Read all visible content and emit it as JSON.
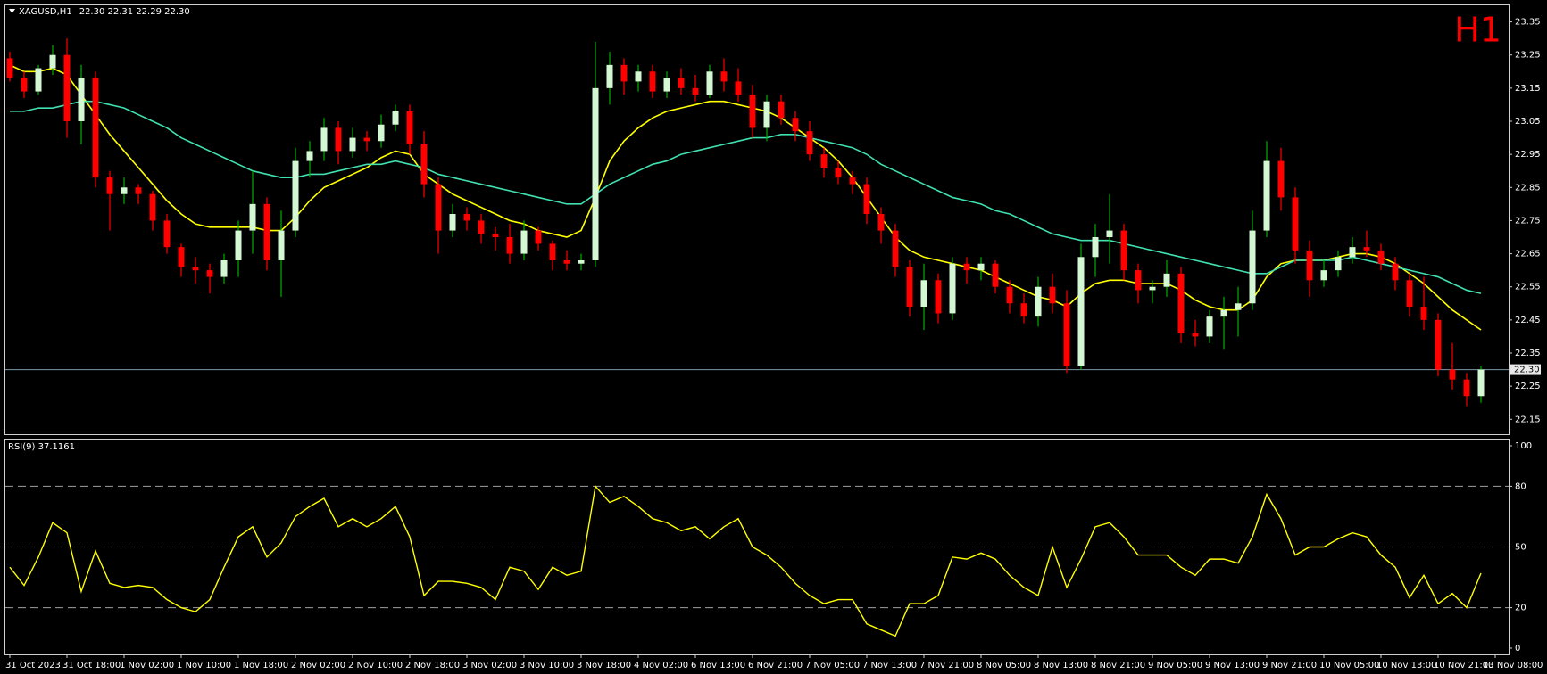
{
  "chart_data": [
    {
      "type": "candlestick",
      "title": "XAGUSD,H1",
      "quote": "22.30 22.31 22.29 22.30",
      "badge": "H1",
      "badge_color": "#ff0000",
      "up_color": "#d4f7d4",
      "up_wick": "#00b000",
      "down_color": "#ff0000",
      "candles": [
        [
          23.24,
          23.26,
          23.17,
          23.18
        ],
        [
          23.18,
          23.2,
          23.12,
          23.14
        ],
        [
          23.14,
          23.22,
          23.13,
          23.21
        ],
        [
          23.21,
          23.28,
          23.19,
          23.25
        ],
        [
          23.25,
          23.3,
          23.0,
          23.05
        ],
        [
          23.05,
          23.22,
          22.98,
          23.18
        ],
        [
          23.18,
          23.2,
          22.85,
          22.88
        ],
        [
          22.88,
          22.9,
          22.72,
          22.83
        ],
        [
          22.83,
          22.88,
          22.8,
          22.85
        ],
        [
          22.85,
          22.86,
          22.8,
          22.83
        ],
        [
          22.83,
          22.84,
          22.72,
          22.75
        ],
        [
          22.75,
          22.77,
          22.65,
          22.67
        ],
        [
          22.67,
          22.68,
          22.58,
          22.61
        ],
        [
          22.61,
          22.64,
          22.56,
          22.6
        ],
        [
          22.6,
          22.62,
          22.53,
          22.58
        ],
        [
          22.58,
          22.65,
          22.56,
          22.63
        ],
        [
          22.63,
          22.75,
          22.58,
          22.72
        ],
        [
          22.72,
          22.9,
          22.65,
          22.8
        ],
        [
          22.8,
          22.82,
          22.6,
          22.63
        ],
        [
          22.63,
          22.78,
          22.52,
          22.72
        ],
        [
          22.72,
          22.97,
          22.7,
          22.93
        ],
        [
          22.93,
          22.99,
          22.88,
          22.96
        ],
        [
          22.96,
          23.06,
          22.93,
          23.03
        ],
        [
          23.03,
          23.05,
          22.92,
          22.96
        ],
        [
          22.96,
          23.03,
          22.94,
          23.0
        ],
        [
          23.0,
          23.02,
          22.96,
          22.99
        ],
        [
          22.99,
          23.07,
          22.97,
          23.04
        ],
        [
          23.04,
          23.1,
          23.02,
          23.08
        ],
        [
          23.08,
          23.1,
          22.95,
          22.98
        ],
        [
          22.98,
          23.02,
          22.82,
          22.86
        ],
        [
          22.86,
          22.88,
          22.65,
          22.72
        ],
        [
          22.72,
          22.8,
          22.7,
          22.77
        ],
        [
          22.77,
          22.79,
          22.72,
          22.75
        ],
        [
          22.75,
          22.77,
          22.68,
          22.71
        ],
        [
          22.71,
          22.73,
          22.66,
          22.7
        ],
        [
          22.7,
          22.74,
          22.62,
          22.65
        ],
        [
          22.65,
          22.75,
          22.63,
          22.72
        ],
        [
          22.72,
          22.73,
          22.66,
          22.68
        ],
        [
          22.68,
          22.69,
          22.6,
          22.63
        ],
        [
          22.63,
          22.66,
          22.6,
          22.62
        ],
        [
          22.62,
          22.65,
          22.6,
          22.63
        ],
        [
          22.63,
          23.29,
          22.61,
          23.15
        ],
        [
          23.15,
          23.26,
          23.1,
          23.22
        ],
        [
          23.22,
          23.24,
          23.13,
          23.17
        ],
        [
          23.17,
          23.22,
          23.14,
          23.2
        ],
        [
          23.2,
          23.22,
          23.12,
          23.14
        ],
        [
          23.14,
          23.2,
          23.12,
          23.18
        ],
        [
          23.18,
          23.21,
          23.13,
          23.15
        ],
        [
          23.15,
          23.19,
          23.11,
          23.13
        ],
        [
          23.13,
          23.22,
          23.12,
          23.2
        ],
        [
          23.2,
          23.24,
          23.14,
          23.17
        ],
        [
          23.17,
          23.21,
          23.11,
          23.13
        ],
        [
          23.13,
          23.16,
          23.0,
          23.03
        ],
        [
          23.03,
          23.13,
          22.99,
          23.11
        ],
        [
          23.11,
          23.13,
          23.04,
          23.06
        ],
        [
          23.06,
          23.08,
          22.99,
          23.02
        ],
        [
          23.02,
          23.05,
          22.93,
          22.95
        ],
        [
          22.95,
          22.97,
          22.88,
          22.91
        ],
        [
          22.91,
          22.93,
          22.86,
          22.88
        ],
        [
          22.88,
          22.9,
          22.83,
          22.86
        ],
        [
          22.86,
          22.88,
          22.74,
          22.77
        ],
        [
          22.77,
          22.79,
          22.68,
          22.72
        ],
        [
          22.72,
          22.74,
          22.58,
          22.61
        ],
        [
          22.61,
          22.63,
          22.46,
          22.49
        ],
        [
          22.49,
          22.62,
          22.42,
          22.57
        ],
        [
          22.57,
          22.59,
          22.44,
          22.47
        ],
        [
          22.47,
          22.64,
          22.45,
          22.62
        ],
        [
          22.62,
          22.64,
          22.56,
          22.6
        ],
        [
          22.6,
          22.64,
          22.57,
          22.62
        ],
        [
          22.62,
          22.63,
          22.53,
          22.55
        ],
        [
          22.55,
          22.57,
          22.47,
          22.5
        ],
        [
          22.5,
          22.53,
          22.44,
          22.46
        ],
        [
          22.46,
          22.58,
          22.43,
          22.55
        ],
        [
          22.55,
          22.59,
          22.47,
          22.5
        ],
        [
          22.5,
          22.54,
          22.29,
          22.31
        ],
        [
          22.31,
          22.68,
          22.3,
          22.64
        ],
        [
          22.64,
          22.74,
          22.58,
          22.7
        ],
        [
          22.7,
          22.83,
          22.62,
          22.72
        ],
        [
          22.72,
          22.74,
          22.57,
          22.6
        ],
        [
          22.6,
          22.62,
          22.5,
          22.54
        ],
        [
          22.54,
          22.57,
          22.5,
          22.55
        ],
        [
          22.55,
          22.63,
          22.52,
          22.59
        ],
        [
          22.59,
          22.61,
          22.38,
          22.41
        ],
        [
          22.41,
          22.45,
          22.37,
          22.4
        ],
        [
          22.4,
          22.48,
          22.38,
          22.46
        ],
        [
          22.46,
          22.52,
          22.36,
          22.48
        ],
        [
          22.48,
          22.55,
          22.4,
          22.5
        ],
        [
          22.5,
          22.78,
          22.48,
          22.72
        ],
        [
          22.72,
          22.99,
          22.7,
          22.93
        ],
        [
          22.93,
          22.97,
          22.78,
          22.82
        ],
        [
          22.82,
          22.85,
          22.62,
          22.66
        ],
        [
          22.66,
          22.69,
          22.52,
          22.57
        ],
        [
          22.57,
          22.63,
          22.55,
          22.6
        ],
        [
          22.6,
          22.66,
          22.58,
          22.64
        ],
        [
          22.64,
          22.7,
          22.62,
          22.67
        ],
        [
          22.67,
          22.72,
          22.64,
          22.66
        ],
        [
          22.66,
          22.68,
          22.6,
          22.62
        ],
        [
          22.62,
          22.64,
          22.54,
          22.57
        ],
        [
          22.57,
          22.59,
          22.46,
          22.49
        ],
        [
          22.49,
          22.58,
          22.42,
          22.45
        ],
        [
          22.45,
          22.47,
          22.28,
          22.3
        ],
        [
          22.3,
          22.38,
          22.24,
          22.27
        ],
        [
          22.27,
          22.29,
          22.19,
          22.22
        ],
        [
          22.22,
          22.31,
          22.2,
          22.3
        ],
        null
      ],
      "lines": [
        {
          "color": "#ffff00",
          "values": [
            23.22,
            23.2,
            23.2,
            23.21,
            23.19,
            23.13,
            23.07,
            23.01,
            22.96,
            22.91,
            22.86,
            22.81,
            22.77,
            22.74,
            22.73,
            22.73,
            22.73,
            22.73,
            22.72,
            22.72,
            22.76,
            22.81,
            22.85,
            22.87,
            22.89,
            22.91,
            22.94,
            22.96,
            22.95,
            22.89,
            22.86,
            22.83,
            22.81,
            22.79,
            22.77,
            22.75,
            22.74,
            22.72,
            22.71,
            22.7,
            22.72,
            22.82,
            22.93,
            22.99,
            23.03,
            23.06,
            23.08,
            23.09,
            23.1,
            23.11,
            23.11,
            23.1,
            23.09,
            23.08,
            23.06,
            23.03,
            23.0,
            22.97,
            22.93,
            22.88,
            22.82,
            22.76,
            22.7,
            22.66,
            22.64,
            22.63,
            22.62,
            22.61,
            22.6,
            22.58,
            22.56,
            22.54,
            22.52,
            22.51,
            22.49,
            22.53,
            22.56,
            22.57,
            22.57,
            22.56,
            22.56,
            22.56,
            22.54,
            22.51,
            22.49,
            22.48,
            22.48,
            22.51,
            22.58,
            22.62,
            22.63,
            22.63,
            22.63,
            22.64,
            22.65,
            22.65,
            22.64,
            22.62,
            22.59,
            22.56,
            22.52,
            22.48,
            22.45,
            22.42,
            null
          ]
        },
        {
          "color": "#40e0b0",
          "values": [
            23.08,
            23.08,
            23.09,
            23.09,
            23.1,
            23.11,
            23.11,
            23.1,
            23.09,
            23.07,
            23.05,
            23.03,
            23.0,
            22.98,
            22.96,
            22.94,
            22.92,
            22.9,
            22.89,
            22.88,
            22.88,
            22.89,
            22.89,
            22.9,
            22.91,
            22.92,
            22.92,
            22.93,
            22.92,
            22.91,
            22.89,
            22.88,
            22.87,
            22.86,
            22.85,
            22.84,
            22.83,
            22.82,
            22.81,
            22.8,
            22.8,
            22.83,
            22.86,
            22.88,
            22.9,
            22.92,
            22.93,
            22.95,
            22.96,
            22.97,
            22.98,
            22.99,
            23.0,
            23.0,
            23.01,
            23.01,
            23.0,
            22.99,
            22.98,
            22.97,
            22.95,
            22.92,
            22.9,
            22.88,
            22.86,
            22.84,
            22.82,
            22.81,
            22.8,
            22.78,
            22.77,
            22.75,
            22.73,
            22.71,
            22.7,
            22.69,
            22.69,
            22.69,
            22.68,
            22.67,
            22.66,
            22.65,
            22.64,
            22.63,
            22.62,
            22.61,
            22.6,
            22.59,
            22.59,
            22.61,
            22.63,
            22.63,
            22.63,
            22.63,
            22.64,
            22.63,
            22.62,
            22.61,
            22.6,
            22.59,
            22.58,
            22.56,
            22.54,
            22.53,
            null
          ]
        }
      ],
      "last_price": {
        "value": 22.3,
        "label": "22.30"
      },
      "last_price_color": "#7a9aaa",
      "ylim": [
        22.105,
        23.4
      ],
      "yticks": [
        22.15,
        22.25,
        22.35,
        22.45,
        22.55,
        22.65,
        22.75,
        22.85,
        22.95,
        23.05,
        23.15,
        23.25,
        23.35
      ]
    },
    {
      "type": "line",
      "title": "RSI(9) 37.1161",
      "color": "#ffff00",
      "values": [
        40,
        31,
        45,
        62,
        57,
        28,
        48,
        32,
        30,
        31,
        30,
        24,
        20,
        18,
        24,
        40,
        55,
        60,
        45,
        52,
        65,
        70,
        74,
        60,
        64,
        60,
        64,
        70,
        55,
        26,
        33,
        33,
        32,
        30,
        24,
        40,
        38,
        29,
        40,
        36,
        38,
        80,
        72,
        75,
        70,
        64,
        62,
        58,
        60,
        54,
        60,
        64,
        50,
        46,
        40,
        32,
        26,
        22,
        24,
        24,
        12,
        9,
        6,
        22,
        22,
        26,
        45,
        44,
        47,
        44,
        36,
        30,
        26,
        50,
        30,
        44,
        60,
        62,
        55,
        46,
        46,
        46,
        40,
        36,
        44,
        44,
        42,
        55,
        76,
        64,
        46,
        50,
        50,
        54,
        57,
        55,
        46,
        40,
        25,
        36,
        22,
        27,
        20,
        37,
        null
      ],
      "ylim": [
        0,
        100
      ],
      "yticks": [
        0,
        20,
        50,
        80,
        100
      ],
      "levels": [
        20,
        50,
        80
      ],
      "level_color": "#a0a0a0",
      "categories": [
        "31 Oct 2023",
        null,
        null,
        null,
        "31 Oct 18:00",
        null,
        null,
        null,
        "1 Nov 02:00",
        null,
        null,
        null,
        "1 Nov 10:00",
        null,
        null,
        null,
        "1 Nov 18:00",
        null,
        null,
        null,
        "2 Nov 02:00",
        null,
        null,
        null,
        "2 Nov 10:00",
        null,
        null,
        null,
        "2 Nov 18:00",
        null,
        null,
        null,
        "3 Nov 02:00",
        null,
        null,
        null,
        "3 Nov 10:00",
        null,
        null,
        null,
        "3 Nov 18:00",
        null,
        null,
        null,
        "4 Nov 02:00",
        null,
        null,
        null,
        "6 Nov 13:00",
        null,
        null,
        null,
        "6 Nov 21:00",
        null,
        null,
        null,
        "7 Nov 05:00",
        null,
        null,
        null,
        "7 Nov 13:00",
        null,
        null,
        null,
        "7 Nov 21:00",
        null,
        null,
        null,
        "8 Nov 05:00",
        null,
        null,
        null,
        "8 Nov 13:00",
        null,
        null,
        null,
        "8 Nov 21:00",
        null,
        null,
        null,
        "9 Nov 05:00",
        null,
        null,
        null,
        "9 Nov 13:00",
        null,
        null,
        null,
        "9 Nov 21:00",
        null,
        null,
        null,
        "10 Nov 05:00",
        null,
        null,
        null,
        "10 Nov 13:00",
        null,
        null,
        null,
        "10 Nov 21:00",
        null,
        null,
        null,
        "13 Nov 08:00"
      ]
    }
  ]
}
